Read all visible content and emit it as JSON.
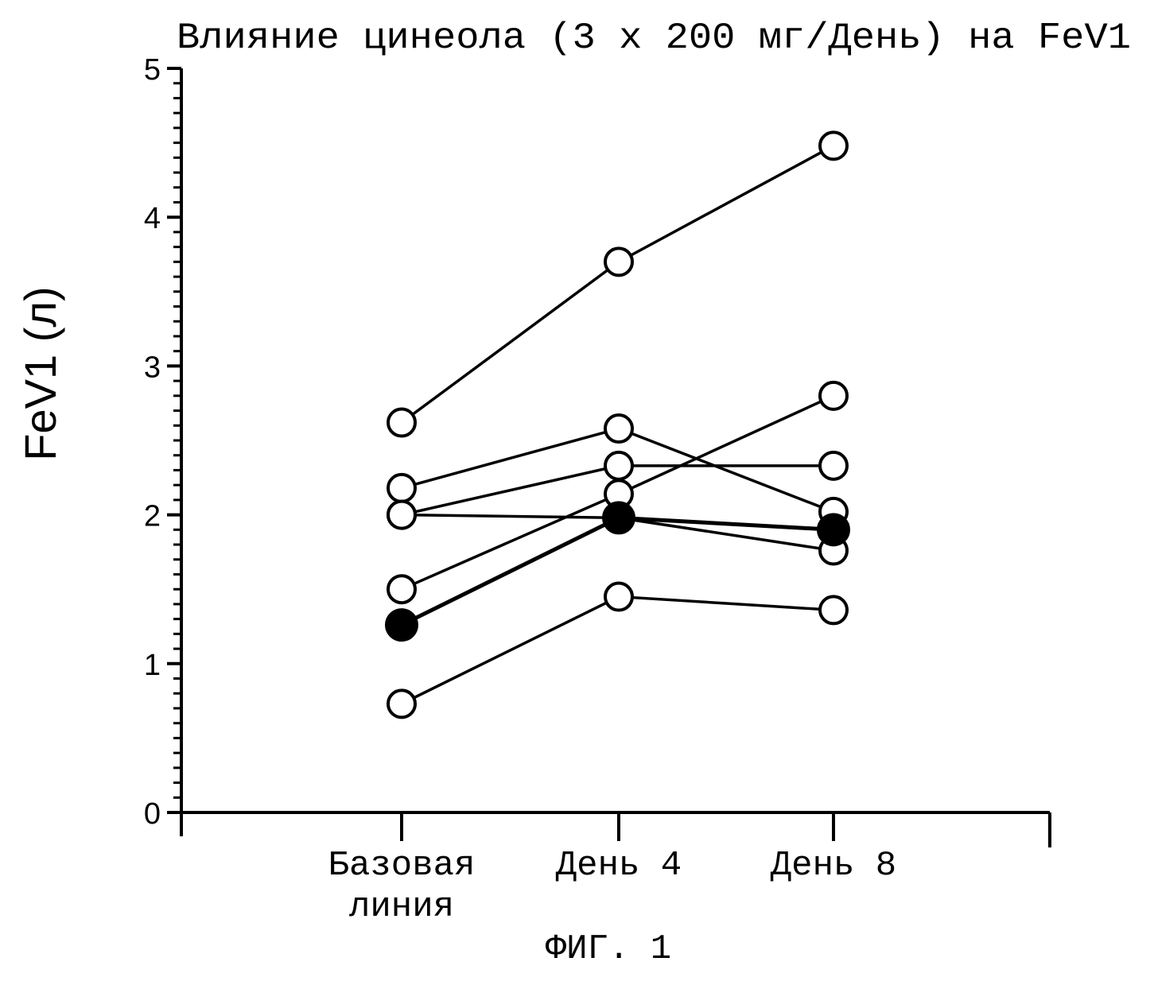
{
  "chart_data": {
    "type": "line",
    "title": "Влияние цинеола (3 х 200 мг/День) на FeV1",
    "ylabel": "FeV1 (л)",
    "xlabel": "",
    "caption": "ФИГ. 1",
    "categories": [
      "Базовая линия",
      "День 4",
      "День 8"
    ],
    "category_lines": [
      [
        "Базовая",
        "линия"
      ],
      [
        "День 4"
      ],
      [
        "День 8"
      ]
    ],
    "ylim": [
      0,
      5
    ],
    "yticks": [
      "0",
      "1",
      "2",
      "3",
      "4",
      "5"
    ],
    "minor_tick_step": 0.1,
    "grid": false,
    "legend": "none",
    "series": [
      {
        "values": [
          2.62,
          3.7,
          4.48
        ],
        "marker": "open"
      },
      {
        "values": [
          2.18,
          2.58,
          2.02
        ],
        "marker": "open"
      },
      {
        "values": [
          2.0,
          2.33,
          2.33
        ],
        "marker": "open"
      },
      {
        "values": [
          2.0,
          1.98,
          1.76
        ],
        "marker": "open"
      },
      {
        "values": [
          1.5,
          2.14,
          2.8
        ],
        "marker": "open"
      },
      {
        "values": [
          1.26,
          1.98,
          1.9
        ],
        "marker": "filled",
        "emphasis": true
      },
      {
        "values": [
          0.73,
          1.45,
          1.36
        ],
        "marker": "open"
      }
    ]
  }
}
